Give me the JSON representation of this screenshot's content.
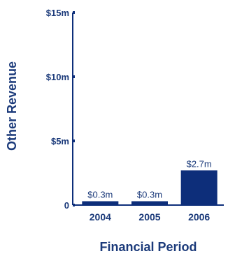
{
  "chart_data": {
    "type": "bar",
    "title": "",
    "xlabel": "Financial Period",
    "ylabel": "Other Revenue",
    "categories": [
      "2004",
      "2005",
      "2006"
    ],
    "values": [
      0.3,
      0.3,
      2.7
    ],
    "value_labels": [
      "$0.3m",
      "$0.3m",
      "$2.7m"
    ],
    "ylim": [
      0,
      15
    ],
    "yticks": [
      0,
      5,
      10,
      15
    ],
    "ytick_labels": [
      "0",
      "$5m",
      "$10m",
      "$15m"
    ],
    "grid": false,
    "legend": "none",
    "colors": {
      "bar": "#0d2e7a",
      "axis": "#0d2e7a",
      "text": "#1b3a7a"
    }
  }
}
